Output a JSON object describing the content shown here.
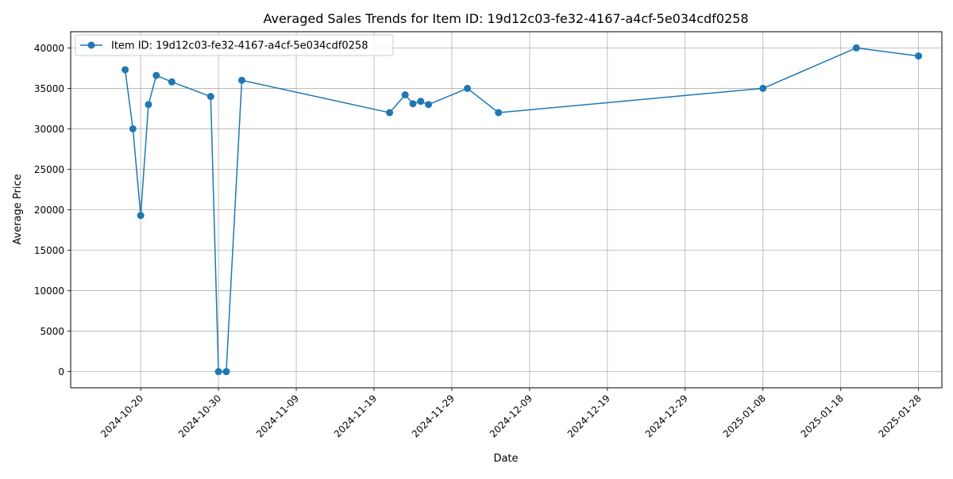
{
  "chart_data": {
    "type": "line",
    "title": "Averaged Sales Trends for Item ID: 19d12c03-fe32-4167-a4cf-5e034cdf0258",
    "xlabel": "Date",
    "ylabel": "Average Price",
    "xlim": [
      "2024-10-11",
      "2025-01-31"
    ],
    "ylim": [
      -2000,
      42000
    ],
    "x_ticks": [
      "2024-10-20",
      "2024-10-30",
      "2024-11-09",
      "2024-11-19",
      "2024-11-29",
      "2024-12-09",
      "2024-12-19",
      "2024-12-29",
      "2025-01-08",
      "2025-01-18",
      "2025-01-28"
    ],
    "y_ticks": [
      0,
      5000,
      10000,
      15000,
      20000,
      25000,
      30000,
      35000,
      40000
    ],
    "grid": true,
    "legend_position": "top-left",
    "series_color": "#1f77b4",
    "series": [
      {
        "name": "Item ID: 19d12c03-fe32-4167-a4cf-5e034cdf0258",
        "points": [
          {
            "x": "2024-10-18",
            "y": 37300
          },
          {
            "x": "2024-10-19",
            "y": 30000
          },
          {
            "x": "2024-10-20",
            "y": 19300
          },
          {
            "x": "2024-10-21",
            "y": 33000
          },
          {
            "x": "2024-10-22",
            "y": 36600
          },
          {
            "x": "2024-10-24",
            "y": 35800
          },
          {
            "x": "2024-10-29",
            "y": 34000
          },
          {
            "x": "2024-10-30",
            "y": 0
          },
          {
            "x": "2024-10-31",
            "y": 0
          },
          {
            "x": "2024-11-02",
            "y": 36000
          },
          {
            "x": "2024-11-21",
            "y": 32000
          },
          {
            "x": "2024-11-23",
            "y": 34200
          },
          {
            "x": "2024-11-24",
            "y": 33100
          },
          {
            "x": "2024-11-25",
            "y": 33400
          },
          {
            "x": "2024-11-26",
            "y": 33000
          },
          {
            "x": "2024-12-01",
            "y": 35000
          },
          {
            "x": "2024-12-05",
            "y": 32000
          },
          {
            "x": "2025-01-08",
            "y": 35000
          },
          {
            "x": "2025-01-20",
            "y": 40000
          },
          {
            "x": "2025-01-28",
            "y": 39000
          }
        ]
      }
    ]
  }
}
